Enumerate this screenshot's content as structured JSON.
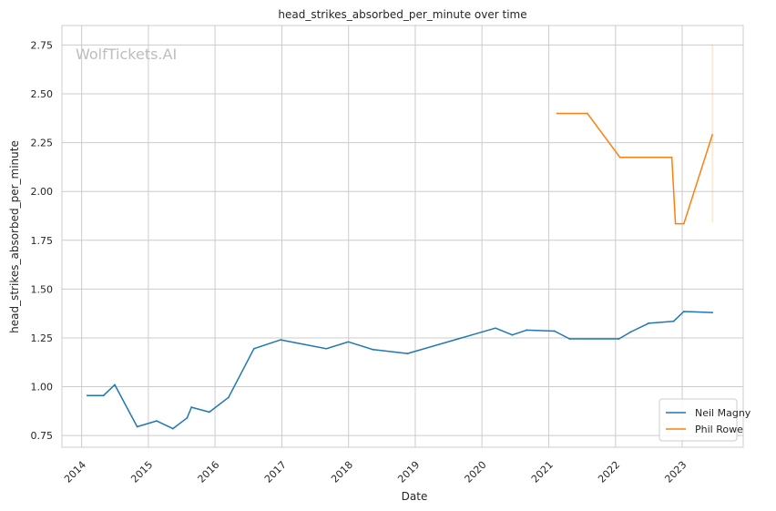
{
  "chart_data": {
    "type": "line",
    "title": "head_strikes_absorbed_per_minute over time",
    "xlabel": "Date",
    "ylabel": "head_strikes_absorbed_per_minute",
    "watermark": "WolfTickets.AI",
    "x_axis_type": "date",
    "xlim": [
      "2013-09-15",
      "2023-12-01"
    ],
    "ylim": [
      0.69,
      2.85
    ],
    "x_ticks": [
      "2014",
      "2015",
      "2016",
      "2017",
      "2018",
      "2019",
      "2020",
      "2021",
      "2022",
      "2023"
    ],
    "y_ticks": [
      "0.75",
      "1.00",
      "1.25",
      "1.50",
      "1.75",
      "2.00",
      "2.25",
      "2.50",
      "2.75"
    ],
    "grid": true,
    "legend_position": "lower right",
    "series": [
      {
        "name": "Neil Magny",
        "color": "#1f77b4",
        "points": [
          {
            "x": "2014-02-01",
            "y": 0.955
          },
          {
            "x": "2014-05-01",
            "y": 0.955
          },
          {
            "x": "2014-07-01",
            "y": 1.01
          },
          {
            "x": "2014-11-01",
            "y": 0.795
          },
          {
            "x": "2015-02-15",
            "y": 0.825
          },
          {
            "x": "2015-05-15",
            "y": 0.785
          },
          {
            "x": "2015-08-01",
            "y": 0.84
          },
          {
            "x": "2015-08-25",
            "y": 0.895
          },
          {
            "x": "2015-12-01",
            "y": 0.87
          },
          {
            "x": "2016-03-15",
            "y": 0.945
          },
          {
            "x": "2016-08-01",
            "y": 1.195
          },
          {
            "x": "2016-12-25",
            "y": 1.24
          },
          {
            "x": "2017-09-01",
            "y": 1.195
          },
          {
            "x": "2017-12-31",
            "y": 1.23
          },
          {
            "x": "2018-05-15",
            "y": 1.19
          },
          {
            "x": "2018-11-20",
            "y": 1.17
          },
          {
            "x": "2020-03-15",
            "y": 1.3
          },
          {
            "x": "2020-06-15",
            "y": 1.265
          },
          {
            "x": "2020-09-01",
            "y": 1.29
          },
          {
            "x": "2021-02-01",
            "y": 1.285
          },
          {
            "x": "2021-04-25",
            "y": 1.245
          },
          {
            "x": "2022-01-20",
            "y": 1.245
          },
          {
            "x": "2022-03-25",
            "y": 1.28
          },
          {
            "x": "2022-07-01",
            "y": 1.325
          },
          {
            "x": "2022-11-15",
            "y": 1.335
          },
          {
            "x": "2023-01-10",
            "y": 1.385
          },
          {
            "x": "2023-06-15",
            "y": 1.38
          }
        ]
      },
      {
        "name": "Phil Rowe",
        "color": "#ff7f0e",
        "points": [
          {
            "x": "2021-02-15",
            "y": 2.4
          },
          {
            "x": "2021-07-31",
            "y": 2.4
          },
          {
            "x": "2022-01-25",
            "y": 2.175
          },
          {
            "x": "2022-11-05",
            "y": 2.175
          },
          {
            "x": "2022-11-25",
            "y": 1.835
          },
          {
            "x": "2023-01-10",
            "y": 1.835
          },
          {
            "x": "2023-06-15",
            "y": 2.29
          }
        ],
        "band": {
          "x": "2023-06-15",
          "y_low": 1.84,
          "y_high": 2.75
        }
      }
    ]
  }
}
